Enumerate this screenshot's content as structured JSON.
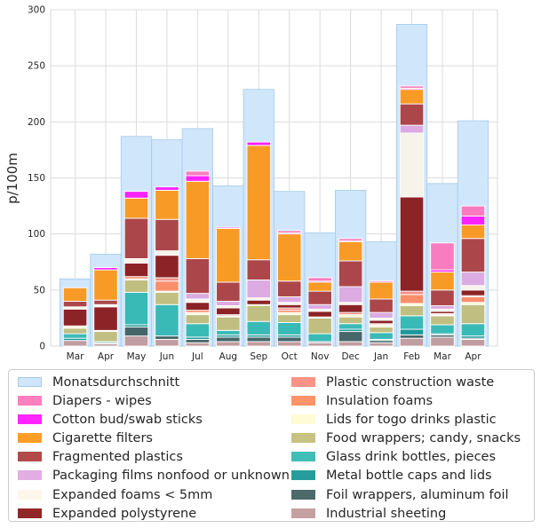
{
  "chart_data": {
    "type": "bar",
    "ylabel": "p/100m",
    "ylim": [
      0,
      300
    ],
    "yticks": [
      0,
      50,
      100,
      150,
      200,
      250,
      300
    ],
    "categories": [
      "Mar",
      "Apr",
      "May",
      "Jun",
      "Jul",
      "Aug",
      "Sep",
      "Oct",
      "Nov",
      "Dec",
      "Jan",
      "Feb",
      "Mar",
      "Apr"
    ],
    "grid": true,
    "legend_placement": "bottom",
    "background_series": {
      "name": "Monatsdurchschnitt",
      "color": "#d0e6fb",
      "edge": "#a6cbe8",
      "values": [
        60,
        82,
        187,
        184,
        194,
        143,
        229,
        138,
        101,
        139,
        93,
        287,
        145,
        201
      ]
    },
    "series": [
      {
        "name": "Industrial sheeting",
        "color": "#bc8f8f",
        "values": [
          5,
          2,
          9,
          6,
          3,
          4,
          4,
          4,
          3,
          4,
          3,
          7,
          8,
          6
        ]
      },
      {
        "name": "Foil wrappers, aluminum foil",
        "color": "#2f4f4f",
        "values": [
          0,
          1,
          8,
          3,
          3,
          4,
          4,
          4,
          1,
          9,
          2,
          3,
          2,
          1
        ]
      },
      {
        "name": "Metal bottle caps and lids",
        "color": "#008b8b",
        "values": [
          2,
          0,
          2,
          0,
          2,
          2,
          2,
          2,
          0,
          2,
          1,
          5,
          1,
          2
        ]
      },
      {
        "name": "Glass drink bottles, pieces",
        "color": "#20b2aa",
        "values": [
          4,
          1,
          29,
          28,
          12,
          4,
          12,
          11,
          7,
          5,
          6,
          12,
          8,
          11
        ]
      },
      {
        "name": "Food wrappers; candy, snacks",
        "color": "#bdb76b",
        "values": [
          5,
          9,
          11,
          11,
          8,
          12,
          14,
          7,
          14,
          6,
          5,
          9,
          8,
          17
        ]
      },
      {
        "name": "Lids for togo drinks plastic",
        "color": "#fffacd",
        "values": [
          2,
          1,
          1,
          1,
          2,
          1,
          1,
          2,
          1,
          2,
          2,
          2,
          1,
          2
        ]
      },
      {
        "name": "Insulation foams",
        "color": "#ff7f50",
        "values": [
          0,
          0,
          2,
          9,
          2,
          0,
          0,
          2,
          0,
          0,
          0,
          8,
          0,
          5
        ]
      },
      {
        "name": "Plastic construction waste",
        "color": "#fa8072",
        "values": [
          0,
          0,
          0,
          3,
          0,
          1,
          0,
          2,
          0,
          2,
          1,
          3,
          1,
          1
        ]
      },
      {
        "name": "Expanded polystyrene",
        "color": "#800000",
        "values": [
          15,
          21,
          12,
          20,
          7,
          6,
          4,
          3,
          5,
          7,
          3,
          84,
          2,
          5
        ]
      },
      {
        "name": "Expanded foams < 5mm",
        "color": "#fdf5e6",
        "values": [
          2,
          2,
          4,
          4,
          3,
          2,
          2,
          2,
          2,
          2,
          2,
          57,
          2,
          4
        ]
      },
      {
        "name": "Packaging films nonfood or unknown",
        "color": "#dda0dd",
        "values": [
          0,
          0,
          0,
          0,
          5,
          4,
          16,
          5,
          4,
          14,
          5,
          7,
          3,
          12
        ]
      },
      {
        "name": "Fragmented plastics",
        "color": "#a52a2a",
        "values": [
          5,
          4,
          36,
          28,
          31,
          17,
          18,
          14,
          12,
          23,
          12,
          19,
          14,
          30
        ]
      },
      {
        "name": "Cigarette filters",
        "color": "#ff8c00",
        "values": [
          12,
          27,
          18,
          26,
          69,
          48,
          102,
          42,
          8,
          17,
          15,
          13,
          16,
          12
        ]
      },
      {
        "name": "Cotton bud/swab sticks",
        "color": "#ff00ff",
        "values": [
          0,
          2,
          6,
          3,
          5,
          1,
          3,
          1,
          1,
          1,
          1,
          1,
          2,
          8
        ]
      },
      {
        "name": "Diapers - wipes",
        "color": "#ff69b4",
        "values": [
          0,
          0,
          0,
          0,
          4,
          0,
          0,
          2,
          3,
          2,
          0,
          2,
          24,
          9
        ]
      }
    ]
  },
  "legend": {
    "columns": [
      [
        "Monatsdurchschnitt",
        "Diapers - wipes",
        "Cotton bud/swab sticks",
        "Cigarette filters",
        "Fragmented plastics",
        "Packaging films nonfood or unknown",
        "Expanded foams < 5mm",
        "Expanded polystyrene"
      ],
      [
        "Plastic construction waste",
        "Insulation foams",
        "Lids for togo drinks plastic",
        "Food wrappers; candy, snacks",
        "Glass drink bottles, pieces",
        "Metal bottle caps and lids",
        "Foil wrappers, aluminum foil",
        "Industrial sheeting"
      ]
    ]
  }
}
